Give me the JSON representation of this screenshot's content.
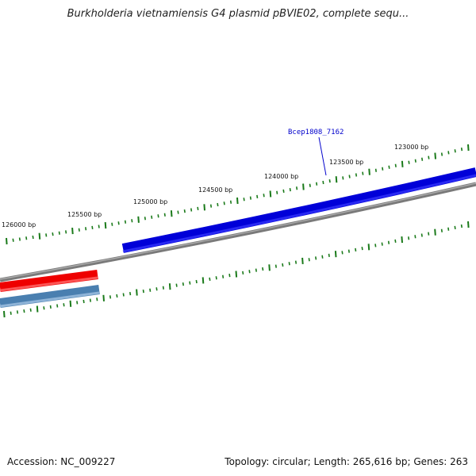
{
  "title": "Burkholderia vietnamiensis G4 plasmid pBVIE02, complete sequ...",
  "footer": {
    "accession": "Accession: NC_009227",
    "summary": "Topology: circular; Length: 265,616 bp; Genes: 263"
  },
  "scale": {
    "tick_labels": [
      "123000 bp",
      "123500 bp",
      "124000 bp",
      "124500 bp",
      "125000 bp",
      "125500 bp",
      "126000 bp"
    ]
  },
  "genes": {
    "labeled": "Bcep1808_7162"
  },
  "colors": {
    "backbone": "#808080",
    "forward_gene": "#0000e0",
    "reverse_gene_red": "#ee0000",
    "reverse_gene_steel": "#4682b4",
    "ticks": "#1a7a1a",
    "gene_label": "#0000cc"
  }
}
